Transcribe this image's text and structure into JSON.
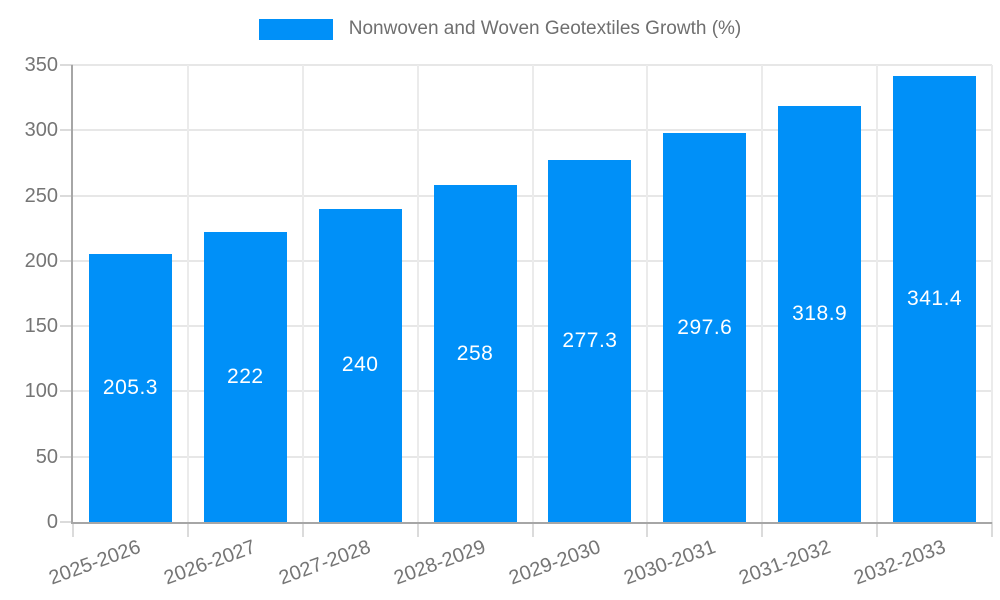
{
  "legend": {
    "label": "Nonwoven and Woven Geotextiles Growth (%)"
  },
  "chart_data": {
    "type": "bar",
    "title": "Nonwoven and Woven Geotextiles Growth (%)",
    "categories": [
      "2025-2026",
      "2026-2027",
      "2027-2028",
      "2028-2029",
      "2029-2030",
      "2030-2031",
      "2031-2032",
      "2032-2033"
    ],
    "values": [
      205.3,
      222,
      240,
      258,
      277.3,
      297.6,
      318.9,
      341.4
    ],
    "xlabel": "",
    "ylabel": "",
    "ylim": [
      0,
      350
    ],
    "yticks": [
      0,
      50,
      100,
      150,
      200,
      250,
      300,
      350
    ],
    "grid": true,
    "legend_position": "top",
    "colors": {
      "bar": "#0090F8",
      "bar_label": "#FFFFFF",
      "grid_h": "#E7E7E7",
      "grid_v": "#EBEBEB",
      "axis": "#A6A6A6",
      "tick": "#DBDBDB",
      "tick_label": "#757575",
      "background": "#FFFFFF"
    }
  }
}
